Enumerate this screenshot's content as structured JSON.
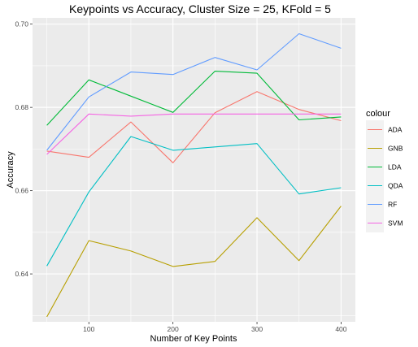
{
  "chart_data": {
    "type": "line",
    "title": "Keypoints vs Accuracy, Cluster Size = 25, KFold = 5",
    "xlabel": "Number of Key Points",
    "ylabel": "Accuracy",
    "x": [
      50,
      100,
      150,
      200,
      250,
      300,
      350,
      400
    ],
    "xlim": [
      33,
      417
    ],
    "ylim": [
      0.6285,
      0.7015
    ],
    "x_ticks": [
      100,
      200,
      300,
      400
    ],
    "x_tick_labels": [
      "100",
      "200",
      "300",
      "400"
    ],
    "x_minor": [
      50,
      150,
      250,
      350
    ],
    "y_ticks": [
      0.64,
      0.66,
      0.68,
      0.7
    ],
    "y_tick_labels": [
      "0.64",
      "0.66",
      "0.68",
      "0.70"
    ],
    "y_minor": [
      0.63,
      0.65,
      0.67,
      0.69
    ],
    "grid": true,
    "background": "#ebebeb",
    "legend": {
      "title": "colour",
      "position": "right"
    },
    "series": [
      {
        "name": "ADA",
        "color": "#F8766D",
        "values": [
          0.6695,
          0.668,
          0.6765,
          0.6667,
          0.6787,
          0.6838,
          0.6795,
          0.6768
        ]
      },
      {
        "name": "GNB",
        "color": "#B79F00",
        "values": [
          0.6297,
          0.648,
          0.6455,
          0.6418,
          0.643,
          0.6535,
          0.6432,
          0.6563
        ]
      },
      {
        "name": "LDA",
        "color": "#00BA38",
        "values": [
          0.6757,
          0.6866,
          0.6827,
          0.6788,
          0.6887,
          0.6882,
          0.677,
          0.6777
        ]
      },
      {
        "name": "QDA",
        "color": "#00BFC4",
        "values": [
          0.6419,
          0.6597,
          0.673,
          0.6697,
          0.6705,
          0.6713,
          0.6592,
          0.6607
        ]
      },
      {
        "name": "RF",
        "color": "#619CFF",
        "values": [
          0.6697,
          0.6825,
          0.6885,
          0.6879,
          0.692,
          0.689,
          0.6977,
          0.6942
        ]
      },
      {
        "name": "SVM",
        "color": "#F564E3",
        "values": [
          0.6687,
          0.6784,
          0.6779,
          0.6784,
          0.6784,
          0.6784,
          0.6784,
          0.6784
        ]
      }
    ]
  }
}
